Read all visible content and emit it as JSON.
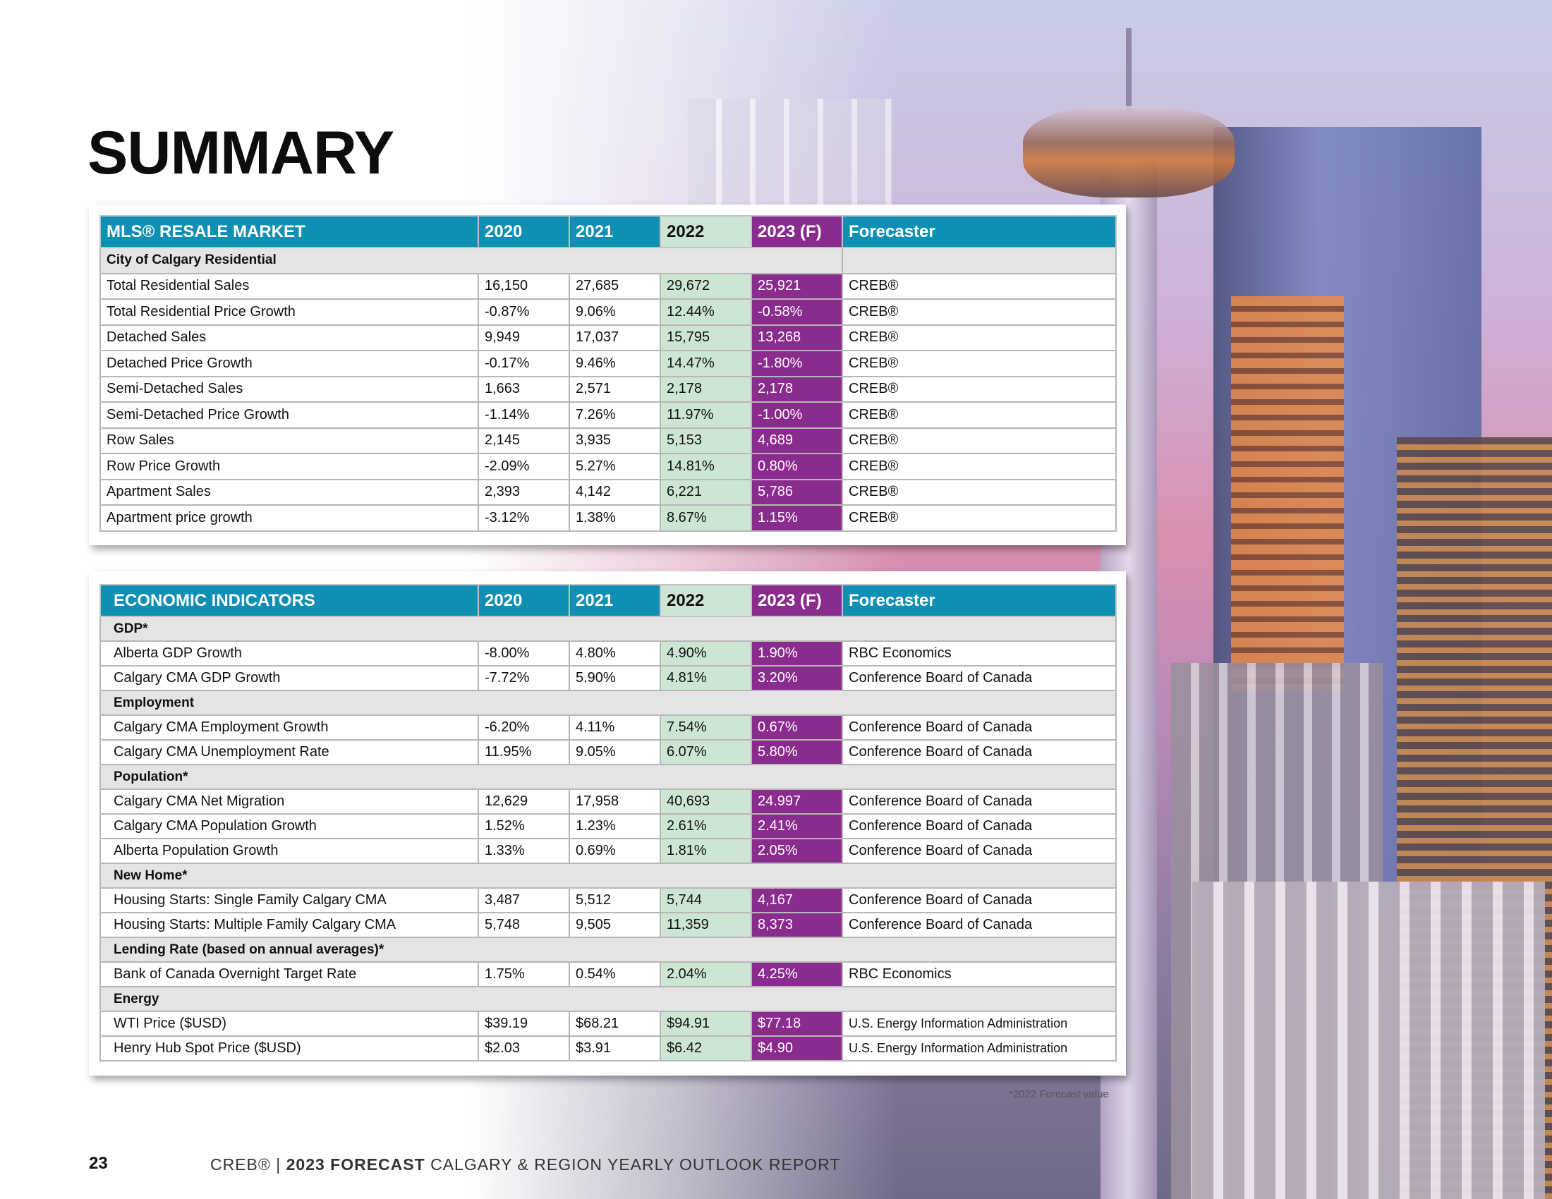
{
  "title": "SUMMARY",
  "mls_table": {
    "header": [
      "MLS® RESALE MARKET",
      "2020",
      "2021",
      "2022",
      "2023 (F)",
      "Forecaster"
    ],
    "section": "City of Calgary Residential",
    "rows": [
      [
        "Total Residential Sales",
        "16,150",
        "27,685",
        "29,672",
        "25,921",
        "CREB®"
      ],
      [
        "Total Residential Price Growth",
        "-0.87%",
        "9.06%",
        "12.44%",
        "-0.58%",
        "CREB®"
      ],
      [
        "Detached Sales",
        "9,949",
        "17,037",
        "15,795",
        "13,268",
        "CREB®"
      ],
      [
        "Detached Price Growth",
        "-0.17%",
        "9.46%",
        "14.47%",
        "-1.80%",
        "CREB®"
      ],
      [
        "Semi-Detached Sales",
        "1,663",
        "2,571",
        "2,178",
        "2,178",
        "CREB®"
      ],
      [
        "Semi-Detached Price Growth",
        "-1.14%",
        "7.26%",
        "11.97%",
        "-1.00%",
        "CREB®"
      ],
      [
        "Row Sales",
        "2,145",
        "3,935",
        "5,153",
        "4,689",
        "CREB®"
      ],
      [
        "Row Price Growth",
        "-2.09%",
        "5.27%",
        "14.81%",
        "0.80%",
        "CREB®"
      ],
      [
        "Apartment Sales",
        "2,393",
        "4,142",
        "6,221",
        "5,786",
        "CREB®"
      ],
      [
        "Apartment price growth",
        "-3.12%",
        "1.38%",
        "8.67%",
        "1.15%",
        "CREB®"
      ]
    ]
  },
  "econ_table": {
    "header": [
      "ECONOMIC INDICATORS",
      "2020",
      "2021",
      "2022",
      "2023 (F)",
      "Forecaster"
    ],
    "sections": [
      {
        "name": "GDP*",
        "rows": [
          [
            "Alberta GDP Growth",
            "-8.00%",
            "4.80%",
            "4.90%",
            "1.90%",
            "RBC Economics"
          ],
          [
            "Calgary CMA GDP Growth",
            "-7.72%",
            "5.90%",
            "4.81%",
            "3.20%",
            "Conference Board of Canada"
          ]
        ]
      },
      {
        "name": "Employment",
        "rows": [
          [
            "Calgary CMA Employment Growth",
            "-6.20%",
            "4.11%",
            "7.54%",
            "0.67%",
            "Conference Board of Canada"
          ],
          [
            "Calgary CMA Unemployment Rate",
            "11.95%",
            "9.05%",
            "6.07%",
            "5.80%",
            "Conference Board of Canada"
          ]
        ]
      },
      {
        "name": "Population*",
        "rows": [
          [
            "Calgary CMA Net Migration",
            "12,629",
            "17,958",
            "40,693",
            "24.997",
            "Conference Board of Canada"
          ],
          [
            "Calgary CMA Population Growth",
            "1.52%",
            "1.23%",
            "2.61%",
            "2.41%",
            "Conference Board of Canada"
          ],
          [
            "Alberta Population Growth",
            "1.33%",
            "0.69%",
            "1.81%",
            "2.05%",
            "Conference Board of Canada"
          ]
        ]
      },
      {
        "name": "New Home*",
        "rows": [
          [
            "Housing Starts: Single Family Calgary CMA",
            "3,487",
            "5,512",
            "5,744",
            "4,167",
            "Conference Board of Canada"
          ],
          [
            "Housing Starts: Multiple Family Calgary CMA",
            "5,748",
            "9,505",
            "11,359",
            "8,373",
            "Conference Board of Canada"
          ]
        ]
      },
      {
        "name": "Lending Rate (based on annual averages)*",
        "rows": [
          [
            "Bank of Canada Overnight Target Rate",
            "1.75%",
            "0.54%",
            "2.04%",
            "4.25%",
            "RBC Economics"
          ]
        ]
      },
      {
        "name": "Energy",
        "rows": [
          [
            "WTI Price ($USD)",
            "$39.19",
            "$68.21",
            "$94.91",
            "$77.18",
            "U.S. Energy Information Administration"
          ],
          [
            "Henry Hub Spot Price ($USD)",
            "$2.03",
            "$3.91",
            "$6.42",
            "$4.90",
            "U.S. Energy Information Administration"
          ]
        ]
      }
    ]
  },
  "footnote": "*2022 Forecast value",
  "page_number": "23",
  "footer": {
    "brand": "CREB®",
    "separator": "|",
    "bold": "2023 FORECAST",
    "rest": "CALGARY & REGION YEARLY OUTLOOK REPORT"
  },
  "colors": {
    "header_blue": "#0f8fb4",
    "col2022_green": "#cde6d3",
    "col2023_purple": "#8a2b8e",
    "section_gray": "#e3e4e3"
  }
}
